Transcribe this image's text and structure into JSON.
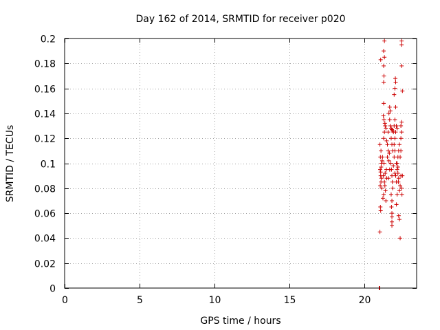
{
  "chart_data": {
    "type": "scatter",
    "title": "Day 162 of 2014, SRMTID for receiver p020",
    "xlabel": "GPS time / hours",
    "ylabel": "SRMTID / TECUs",
    "xlim": [
      0,
      23.5
    ],
    "ylim": [
      0,
      0.2
    ],
    "xticks": [
      0,
      5,
      10,
      15,
      20
    ],
    "xtick_labels": [
      "0",
      "5",
      "10",
      "15",
      "20"
    ],
    "yticks": [
      0,
      0.02,
      0.04,
      0.06,
      0.08,
      0.1,
      0.12,
      0.14,
      0.16,
      0.18,
      0.2
    ],
    "ytick_labels": [
      "0",
      "0.02",
      "0.04",
      "0.06",
      "0.08",
      "0.1",
      "0.12",
      "0.14",
      "0.16",
      "0.18",
      "0.2"
    ],
    "grid": true,
    "legend": "none",
    "marker": "plus",
    "series": [
      {
        "color": "#cc0000",
        "points": [
          [
            21.0,
            0.0
          ],
          [
            21.02,
            0.0
          ],
          [
            21.04,
            0.0
          ],
          [
            21.05,
            0.045
          ],
          [
            21.08,
            0.065
          ],
          [
            21.1,
            0.062
          ],
          [
            21.12,
            0.085
          ],
          [
            21.07,
            0.082
          ],
          [
            21.1,
            0.09
          ],
          [
            21.13,
            0.097
          ],
          [
            21.15,
            0.1
          ],
          [
            21.08,
            0.105
          ],
          [
            21.12,
            0.11
          ],
          [
            21.05,
            0.115
          ],
          [
            21.1,
            0.093
          ],
          [
            21.15,
            0.088
          ],
          [
            21.07,
            0.095
          ],
          [
            21.2,
            0.102
          ],
          [
            21.22,
            0.105
          ],
          [
            21.18,
            0.08
          ],
          [
            21.25,
            0.072
          ],
          [
            21.3,
            0.075
          ],
          [
            21.28,
            0.09
          ],
          [
            21.35,
            0.085
          ],
          [
            21.32,
            0.1
          ],
          [
            21.4,
            0.092
          ],
          [
            21.38,
            0.082
          ],
          [
            21.45,
            0.07
          ],
          [
            21.42,
            0.078
          ],
          [
            21.5,
            0.088
          ],
          [
            21.48,
            0.095
          ],
          [
            21.55,
            0.105
          ],
          [
            21.6,
            0.11
          ],
          [
            21.3,
            0.12
          ],
          [
            21.35,
            0.125
          ],
          [
            21.4,
            0.13
          ],
          [
            21.32,
            0.135
          ],
          [
            21.28,
            0.138
          ],
          [
            21.38,
            0.132
          ],
          [
            21.45,
            0.128
          ],
          [
            21.5,
            0.118
          ],
          [
            21.55,
            0.115
          ],
          [
            21.3,
            0.148
          ],
          [
            21.3,
            0.165
          ],
          [
            21.32,
            0.17
          ],
          [
            21.3,
            0.178
          ],
          [
            21.35,
            0.185
          ],
          [
            21.3,
            0.19
          ],
          [
            21.35,
            0.198
          ],
          [
            21.1,
            0.183
          ],
          [
            21.6,
            0.125
          ],
          [
            21.65,
            0.14
          ],
          [
            21.7,
            0.135
          ],
          [
            21.75,
            0.13
          ],
          [
            21.8,
            0.128
          ],
          [
            21.85,
            0.127
          ],
          [
            21.9,
            0.126
          ],
          [
            21.95,
            0.125
          ],
          [
            21.7,
            0.145
          ],
          [
            21.75,
            0.142
          ],
          [
            21.8,
            0.12
          ],
          [
            21.85,
            0.115
          ],
          [
            21.9,
            0.11
          ],
          [
            21.78,
            0.1
          ],
          [
            21.82,
            0.095
          ],
          [
            21.85,
            0.09
          ],
          [
            21.88,
            0.085
          ],
          [
            21.9,
            0.08
          ],
          [
            21.8,
            0.075
          ],
          [
            21.85,
            0.07
          ],
          [
            21.82,
            0.065
          ],
          [
            21.85,
            0.06
          ],
          [
            21.85,
            0.057
          ],
          [
            21.85,
            0.053
          ],
          [
            21.85,
            0.05
          ],
          [
            21.95,
            0.098
          ],
          [
            22.0,
            0.105
          ],
          [
            22.05,
            0.11
          ],
          [
            22.0,
            0.115
          ],
          [
            22.05,
            0.12
          ],
          [
            22.0,
            0.13
          ],
          [
            22.05,
            0.135
          ],
          [
            22.1,
            0.145
          ],
          [
            22.0,
            0.155
          ],
          [
            22.05,
            0.16
          ],
          [
            22.1,
            0.165
          ],
          [
            22.08,
            0.168
          ],
          [
            22.15,
            0.1
          ],
          [
            22.1,
            0.09
          ],
          [
            22.15,
            0.085
          ],
          [
            22.2,
            0.095
          ],
          [
            22.25,
            0.097
          ],
          [
            22.3,
            0.088
          ],
          [
            22.2,
            0.075
          ],
          [
            22.15,
            0.067
          ],
          [
            22.2,
            0.1
          ],
          [
            22.25,
            0.105
          ],
          [
            22.3,
            0.11
          ],
          [
            22.35,
            0.115
          ],
          [
            22.28,
            0.085
          ],
          [
            22.35,
            0.078
          ],
          [
            22.4,
            0.082
          ],
          [
            22.3,
            0.058
          ],
          [
            22.35,
            0.055
          ],
          [
            22.4,
            0.04
          ],
          [
            22.45,
            0.09
          ],
          [
            22.5,
            0.08
          ],
          [
            22.45,
            0.12
          ],
          [
            22.5,
            0.125
          ],
          [
            22.45,
            0.13
          ],
          [
            22.5,
            0.133
          ],
          [
            22.55,
            0.158
          ],
          [
            22.5,
            0.178
          ],
          [
            22.5,
            0.195
          ],
          [
            22.5,
            0.198
          ],
          [
            22.52,
            0.075
          ],
          [
            22.55,
            0.09
          ],
          [
            22.45,
            0.11
          ],
          [
            22.4,
            0.105
          ],
          [
            22.1,
            0.125
          ],
          [
            22.15,
            0.13
          ],
          [
            22.2,
            0.128
          ],
          [
            21.65,
            0.102
          ],
          [
            21.7,
            0.095
          ],
          [
            21.62,
            0.088
          ],
          [
            21.68,
            0.108
          ],
          [
            22.05,
            0.092
          ],
          [
            22.25,
            0.092
          ]
        ]
      }
    ]
  }
}
